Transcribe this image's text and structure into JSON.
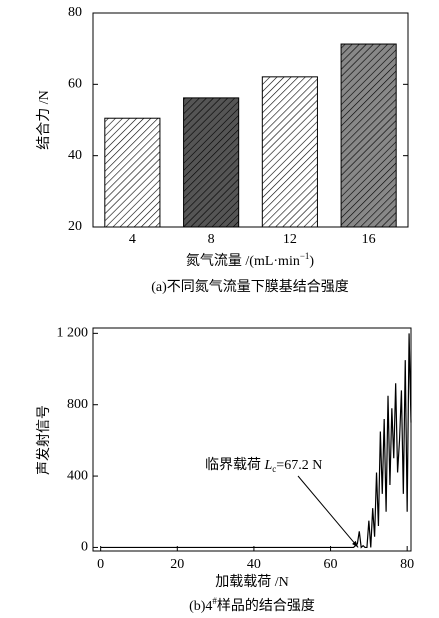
{
  "chart_data": [
    {
      "type": "bar",
      "categories": [
        "4",
        "8",
        "12",
        "16"
      ],
      "values": [
        50.5,
        56.2,
        62.1,
        71.3
      ],
      "colors": [
        "#ffffff",
        "#555555",
        "#ffffff",
        "#888888"
      ],
      "ylim": [
        20,
        80
      ],
      "yticks": [
        20,
        40,
        60,
        80
      ],
      "ylabel": "结合力 /N",
      "xlabel": {
        "main": "氮气流量 /(mL·min",
        "sup": "−1",
        "end": ")"
      },
      "caption": "(a)不同氮气流量下膜基结合强度"
    },
    {
      "type": "line",
      "x": [
        0,
        66,
        67,
        67.5,
        68,
        68.5,
        69,
        69.5,
        70,
        70.5,
        71,
        71.5,
        72,
        72.5,
        73,
        73.5,
        74,
        74.5,
        75,
        75.5,
        76,
        76.5,
        77,
        77.5,
        78,
        78.5,
        79,
        79.5,
        80,
        80.5,
        81
      ],
      "values": [
        0,
        0,
        20,
        90,
        0,
        10,
        0,
        0,
        150,
        0,
        220,
        60,
        420,
        120,
        650,
        300,
        720,
        200,
        850,
        350,
        780,
        500,
        920,
        420,
        600,
        880,
        300,
        1050,
        200,
        1200,
        700
      ],
      "color": "#000000",
      "xlim": [
        -2,
        81
      ],
      "xticks": [
        0,
        20,
        40,
        60,
        80
      ],
      "ylim": [
        -20,
        1230
      ],
      "yticks": [
        0,
        400,
        800,
        {
          "value": 1200,
          "label": "1 200"
        }
      ],
      "ylabel": "声发射信号",
      "xlabel": "加载载荷 /N",
      "annotation": {
        "text": "临界载荷 ",
        "symbol": "L",
        "subscript": "c",
        "value": {
          "value": 67.2,
          "label": "=67.2 N"
        }
      },
      "caption": {
        "main": "(b)4",
        "sup": "#",
        "end": "样品的结合强度"
      }
    }
  ]
}
